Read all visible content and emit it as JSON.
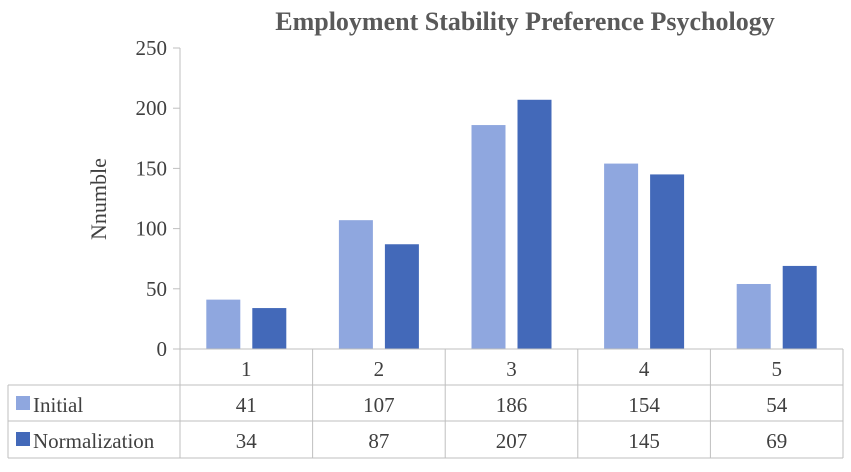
{
  "chart_data": {
    "type": "bar",
    "title": "Employment Stability Preference Psychology",
    "xlabel": "",
    "ylabel": "Nnumble",
    "categories": [
      "1",
      "2",
      "3",
      "4",
      "5"
    ],
    "ylim": [
      0,
      250
    ],
    "yticks": [
      "0",
      "50",
      "100",
      "150",
      "200",
      "250"
    ],
    "grid": false,
    "legend": "bottom-table",
    "series": [
      {
        "name": "Initial",
        "color": "#8fa7df",
        "values": [
          41,
          107,
          186,
          154,
          54
        ]
      },
      {
        "name": "Normalization",
        "color": "#4369b9",
        "values": [
          34,
          87,
          207,
          145,
          69
        ]
      }
    ]
  }
}
